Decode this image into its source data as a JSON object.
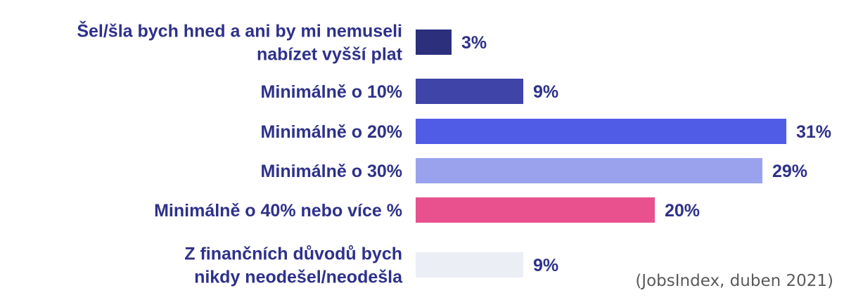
{
  "chart_data": {
    "type": "bar",
    "orientation": "horizontal",
    "categories": [
      [
        "Šel/šla bych hned a ani by mi nemuseli",
        "nabízet vyšší plat"
      ],
      [
        "Minimálně o 10%"
      ],
      [
        "Minimálně o 20%"
      ],
      [
        "Minimálně o 30%"
      ],
      [
        "Minimálně o 40% nebo více %"
      ],
      [
        "Z finančních důvodů bych",
        "nikdy neodešel/neodešla"
      ]
    ],
    "values": [
      3,
      9,
      31,
      29,
      20,
      9
    ],
    "value_labels": [
      "3%",
      "9%",
      "31%",
      "29%",
      "20%",
      "9%"
    ],
    "unit": "%",
    "bar_colors": [
      "#2b2f7c",
      "#3e44a8",
      "#505ce6",
      "#9aa2ee",
      "#e8508e",
      "#eceef6"
    ],
    "label_color": "#2e318a",
    "source": "(JobsIndex, duben 2021)",
    "grid": false,
    "legend": "none"
  }
}
